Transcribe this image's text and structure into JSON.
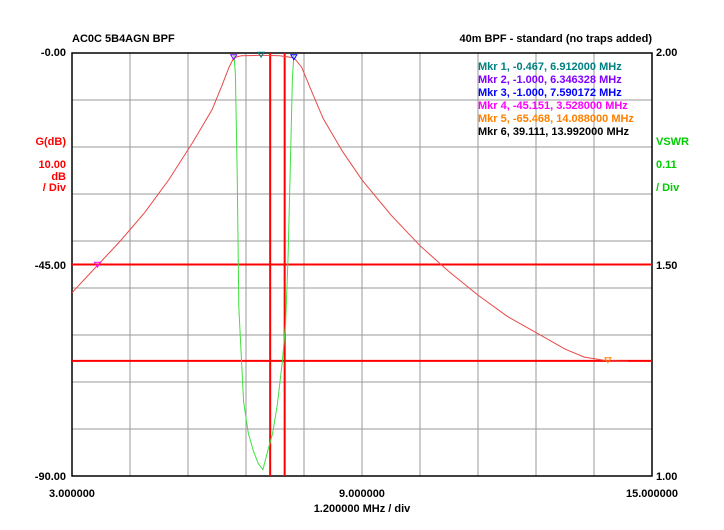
{
  "header": {
    "title_left": "AC0C 5B4AGN BPF",
    "title_right": "40m BPF - standard (no traps added)"
  },
  "left_axis": {
    "name": "G(dB)",
    "scale": "10.00",
    "unit": "dB",
    "per_div": "/ Div",
    "tick_top": "-0.00",
    "tick_mid": "-45.00",
    "tick_bottom": "-90.00"
  },
  "right_axis": {
    "name": "VSWR",
    "scale": "0.11",
    "per_div": "/ Div",
    "tick_top": "2.00",
    "tick_mid": "1.50",
    "tick_bottom": "1.00"
  },
  "x_axis": {
    "tick_left": "3.000000",
    "tick_mid": "9.000000",
    "tick_right": "15.000000",
    "per_div": "1.200000 MHz / div"
  },
  "markers_legend": [
    {
      "label": "Mkr 1, -0.467, 6.912000 MHz",
      "color": "#008080"
    },
    {
      "label": "Mkr 2, -1.000, 6.346328 MHz",
      "color": "#8000ff"
    },
    {
      "label": "Mkr 3, -1.000, 7.590172 MHz",
      "color": "#0000ff"
    },
    {
      "label": "Mkr 4, -45.151, 3.528000 MHz",
      "color": "#ff00ff"
    },
    {
      "label": "Mkr 5, -65.468, 14.088000 MHz",
      "color": "#ff8000"
    },
    {
      "label": "Mkr 6, 39.111, 13.992000 MHz",
      "color": "#000000"
    }
  ],
  "colors": {
    "gain": "#e84848",
    "vswr": "#40e040",
    "grid": "#9a9a9a",
    "cursor": "#ff0000",
    "left_axis_text": "#ff0000",
    "right_axis_text": "#00cc00"
  },
  "chart_data": {
    "type": "line",
    "x_range_mhz": [
      3.0,
      15.0
    ],
    "y_left_range_db": [
      -90.0,
      0.0
    ],
    "y_right_range_vswr": [
      1.0,
      2.0
    ],
    "x_divisions": 10,
    "y_divisions": 9,
    "grid": true,
    "legend_placement": "top-right",
    "cursor_lines": {
      "x_mhz": [
        7.1,
        7.4
      ],
      "y_db": [
        -45.0,
        -65.5
      ]
    },
    "series": [
      {
        "name": "G(dB)",
        "axis": "left",
        "x": [
          3.0,
          3.528,
          4.0,
          4.5,
          5.0,
          5.5,
          5.9,
          6.1,
          6.25,
          6.35,
          6.5,
          6.912,
          7.3,
          7.59,
          7.75,
          7.95,
          8.2,
          8.6,
          9.0,
          9.6,
          10.2,
          10.8,
          11.4,
          12.0,
          12.6,
          13.2,
          13.6,
          14.088,
          14.4,
          14.5
        ],
        "y": [
          -51.0,
          -45.2,
          -40.0,
          -34.0,
          -27.0,
          -19.0,
          -12.0,
          -7.0,
          -3.0,
          -1.0,
          -0.6,
          -0.5,
          -0.6,
          -1.0,
          -3.0,
          -8.0,
          -14.0,
          -21.0,
          -27.0,
          -34.5,
          -41.0,
          -46.5,
          -51.5,
          -56.0,
          -59.5,
          -63.0,
          -64.7,
          -65.5,
          -65.6,
          -65.6
        ]
      },
      {
        "name": "VSWR",
        "axis": "right",
        "x": [
          6.35,
          6.38,
          6.42,
          6.45,
          6.55,
          6.65,
          6.75,
          6.85,
          6.95,
          7.05,
          7.15,
          7.25,
          7.35,
          7.42,
          7.47,
          7.52,
          7.56,
          7.59
        ],
        "y": [
          1.995,
          1.95,
          1.7,
          1.4,
          1.175,
          1.1,
          1.06,
          1.03,
          1.015,
          1.06,
          1.1,
          1.17,
          1.27,
          1.36,
          1.52,
          1.75,
          1.94,
          1.995
        ]
      }
    ],
    "markers": [
      {
        "id": 1,
        "x": 6.912,
        "y": -0.467,
        "axis": "left"
      },
      {
        "id": 2,
        "x": 6.346328,
        "y": -1.0,
        "axis": "left"
      },
      {
        "id": 3,
        "x": 7.590172,
        "y": -1.0,
        "axis": "left"
      },
      {
        "id": 4,
        "x": 3.528,
        "y": -45.151,
        "axis": "left"
      },
      {
        "id": 5,
        "x": 14.088,
        "y": -65.468,
        "axis": "left"
      }
    ]
  }
}
